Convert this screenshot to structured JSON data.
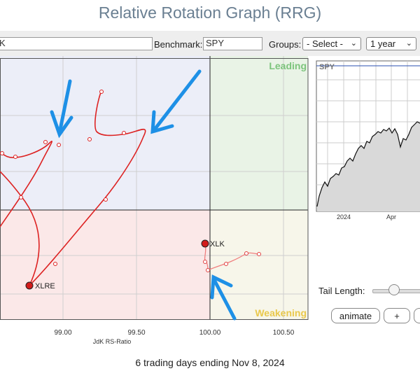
{
  "app_title": "Relative Rotation Graph (RRG)",
  "toolbar": {
    "symbols_value": "K",
    "benchmark_label": "Benchmark:",
    "benchmark_value": "SPY",
    "groups_label": "Groups:",
    "groups_selected": "- Select -",
    "period_selected": "1 year"
  },
  "rrg": {
    "quadrants": {
      "leading": "Leading",
      "weakening": "Weakening"
    },
    "x_axis_label": "JdK RS-Ratio",
    "x_ticks": [
      "99.00",
      "99.50",
      "100.00",
      "100.50"
    ],
    "tickers": {
      "xlre": "XLRE",
      "xlk": "XLK"
    }
  },
  "benchmark_chart": {
    "symbol": "SPY",
    "x_ticks": [
      "2024",
      "Apr"
    ]
  },
  "controls": {
    "tail_length_label": "Tail Length:",
    "tail_length_value": 0.4,
    "animate_label": "animate",
    "plus_label": "+"
  },
  "footer": "6 trading days ending Nov 8, 2024",
  "colors": {
    "leading_bg": "#e9f3e6",
    "weakening_bg": "#f7f6ea",
    "lagging_bg": "#fbe8e8",
    "improving_bg": "#eceef8",
    "xlre_tail": "#dd2222",
    "xlk_tail": "#f07f7f",
    "annotation_arrow": "#1e90e6",
    "leading_text": "#7cc47c",
    "weakening_text": "#e9c84c"
  }
}
